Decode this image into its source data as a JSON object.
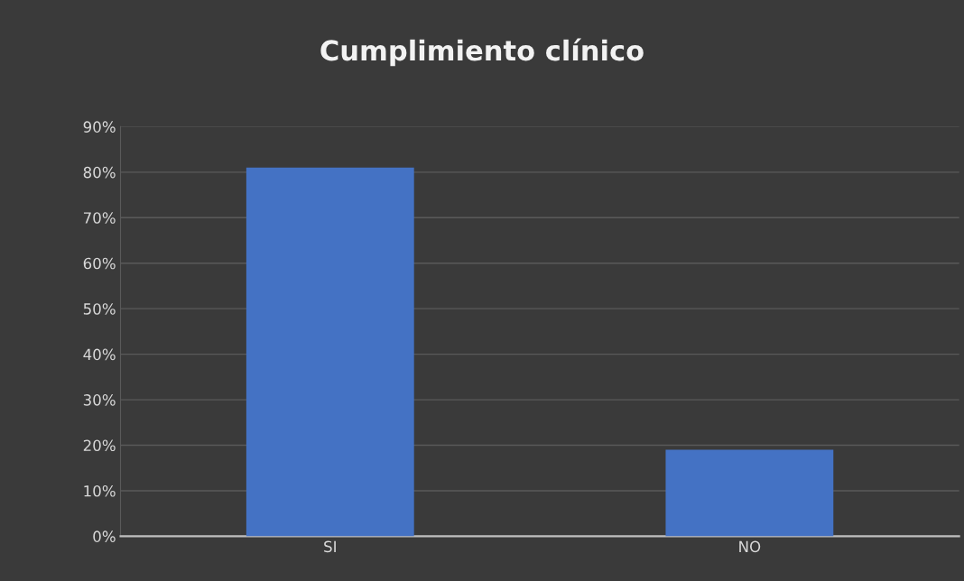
{
  "chart_data": {
    "type": "bar",
    "title": "Cumplimiento clínico",
    "categories": [
      "SI",
      "NO"
    ],
    "series": [
      {
        "color": "#4472c4",
        "values": [
          81,
          19
        ]
      }
    ],
    "ylim": [
      0,
      90
    ],
    "yticks": [
      {
        "value": 0,
        "label": "0%"
      },
      {
        "value": 10,
        "label": "10%"
      },
      {
        "value": 20,
        "label": "20%"
      },
      {
        "value": 30,
        "label": "30%"
      },
      {
        "value": 40,
        "label": "40%"
      },
      {
        "value": 50,
        "label": "50%"
      },
      {
        "value": 60,
        "label": "60%"
      },
      {
        "value": 70,
        "label": "70%"
      },
      {
        "value": 80,
        "label": "80%"
      },
      {
        "value": 90,
        "label": "90%"
      }
    ],
    "grid": "y",
    "legend": false
  }
}
